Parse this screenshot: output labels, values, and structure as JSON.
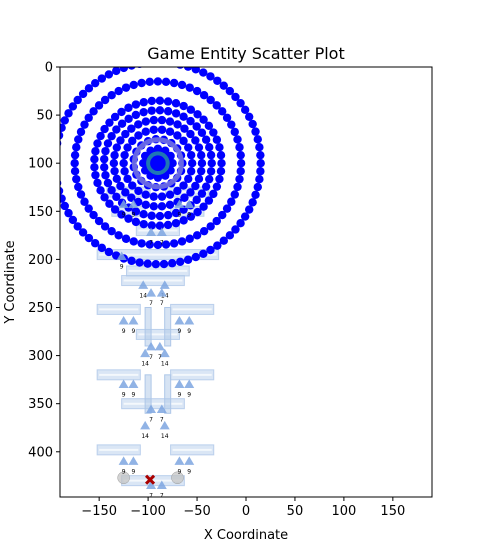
{
  "chart_data": {
    "type": "scatter",
    "title": "Game Entity Scatter Plot",
    "xlabel": "X Coordinate",
    "ylabel": "Y Coordinate",
    "xlim": [
      -190,
      190
    ],
    "ylim": [
      447,
      0
    ],
    "y_inverted": true,
    "grid": false,
    "xticks": [
      -150,
      -100,
      -50,
      0,
      50,
      100,
      150
    ],
    "yticks": [
      0,
      50,
      100,
      150,
      200,
      250,
      300,
      350,
      400
    ],
    "rings": {
      "name": "orbit rings",
      "color": "#0000ff",
      "center": [
        -90,
        100
      ],
      "radii": [
        105,
        85,
        65,
        55,
        45,
        35,
        25,
        15
      ]
    },
    "core": {
      "center": [
        -90,
        100
      ],
      "fill_radius": 10,
      "ring_radius": 14,
      "ring_color": "#1f77b4",
      "halo_color": "#8888dd"
    },
    "platforms": {
      "color": "#aec7e8",
      "items": [
        {
          "x1": -140,
          "x2": -100,
          "y": 130
        },
        {
          "x1": -80,
          "x2": -40,
          "y": 130
        },
        {
          "x1": -135,
          "x2": -105,
          "y": 150
        },
        {
          "x1": -75,
          "x2": -45,
          "y": 150
        },
        {
          "x1": -110,
          "x2": -70,
          "y": 170
        },
        {
          "x1": -150,
          "x2": -30,
          "y": 195
        },
        {
          "x1": -120,
          "x2": -60,
          "y": 212
        },
        {
          "x1": -125,
          "x2": -65,
          "y": 222
        },
        {
          "x1": -150,
          "x2": -110,
          "y": 252
        },
        {
          "x1": -75,
          "x2": -35,
          "y": 252
        },
        {
          "x1": -110,
          "x2": -70,
          "y": 278
        },
        {
          "x1": -150,
          "x2": -110,
          "y": 320
        },
        {
          "x1": -75,
          "x2": -35,
          "y": 320
        },
        {
          "x1": -125,
          "x2": -65,
          "y": 350
        },
        {
          "x1": -150,
          "x2": -110,
          "y": 398
        },
        {
          "x1": -75,
          "x2": -35,
          "y": 398
        },
        {
          "x1": -125,
          "x2": -65,
          "y": 430
        }
      ]
    },
    "walls": {
      "color": "#aec7e8",
      "items": [
        {
          "x": -100,
          "y1": 250,
          "y2": 290
        },
        {
          "x": -80,
          "y1": 250,
          "y2": 290
        },
        {
          "x": -100,
          "y1": 320,
          "y2": 360
        },
        {
          "x": -80,
          "y1": 320,
          "y2": 360
        }
      ]
    },
    "entities": {
      "color": "#7ea6e0",
      "items": [
        {
          "x": -125,
          "y": 143,
          "label": "9"
        },
        {
          "x": -115,
          "y": 143,
          "label": "9"
        },
        {
          "x": -68,
          "y": 143,
          "label": "9"
        },
        {
          "x": -58,
          "y": 143,
          "label": "9"
        },
        {
          "x": -97,
          "y": 172,
          "label": "7"
        },
        {
          "x": -86,
          "y": 172,
          "label": "7"
        },
        {
          "x": -127,
          "y": 197,
          "label": "9"
        },
        {
          "x": -105,
          "y": 227,
          "label": "14"
        },
        {
          "x": -83,
          "y": 227,
          "label": "14"
        },
        {
          "x": -97,
          "y": 235,
          "label": "7"
        },
        {
          "x": -86,
          "y": 235,
          "label": "7"
        },
        {
          "x": -125,
          "y": 264,
          "label": "9"
        },
        {
          "x": -115,
          "y": 264,
          "label": "9"
        },
        {
          "x": -68,
          "y": 264,
          "label": "9"
        },
        {
          "x": -58,
          "y": 264,
          "label": "9"
        },
        {
          "x": -103,
          "y": 298,
          "label": "14"
        },
        {
          "x": -83,
          "y": 298,
          "label": "14"
        },
        {
          "x": -97,
          "y": 291,
          "label": "7"
        },
        {
          "x": -88,
          "y": 291,
          "label": "7"
        },
        {
          "x": -125,
          "y": 330,
          "label": "9"
        },
        {
          "x": -115,
          "y": 330,
          "label": "9"
        },
        {
          "x": -68,
          "y": 330,
          "label": "9"
        },
        {
          "x": -58,
          "y": 330,
          "label": "9"
        },
        {
          "x": -97,
          "y": 356,
          "label": "7"
        },
        {
          "x": -86,
          "y": 356,
          "label": "7"
        },
        {
          "x": -103,
          "y": 373,
          "label": "14"
        },
        {
          "x": -83,
          "y": 373,
          "label": "14"
        },
        {
          "x": -125,
          "y": 410,
          "label": "9"
        },
        {
          "x": -115,
          "y": 410,
          "label": "9"
        },
        {
          "x": -68,
          "y": 410,
          "label": "9"
        },
        {
          "x": -58,
          "y": 410,
          "label": "9"
        },
        {
          "x": -97,
          "y": 435,
          "label": "7"
        },
        {
          "x": -86,
          "y": 435,
          "label": "7"
        }
      ]
    },
    "gray_markers": {
      "color": "#c0c0c0",
      "items": [
        {
          "x": -125,
          "y": 427
        },
        {
          "x": -70,
          "y": 427
        }
      ]
    },
    "player": {
      "color": "#aa0000",
      "x": -98,
      "y": 429
    }
  }
}
